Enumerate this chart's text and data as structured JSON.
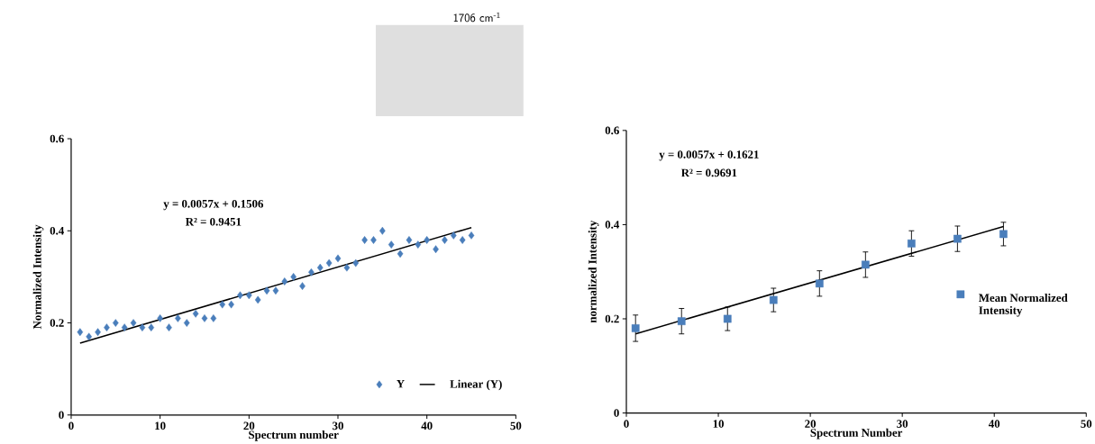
{
  "chart_data": [
    {
      "type": "scatter",
      "xlabel": "Spectrum number",
      "ylabel": "Normalized Intensity",
      "xlim": [
        0,
        50
      ],
      "ylim": [
        0,
        0.6
      ],
      "xticks": [
        0,
        10,
        20,
        30,
        40,
        50
      ],
      "yticks": [
        0,
        0.2,
        0.4,
        0.6
      ],
      "legend": "bottom right",
      "grid": false,
      "annotations": [
        "y = 0.0057x + 0.1506",
        "R² = 0.9451"
      ],
      "series": [
        {
          "name": "Y",
          "type": "scatter",
          "marker": "diamond",
          "color": "#4a7ebb",
          "x": [
            1,
            2,
            3,
            4,
            5,
            6,
            7,
            8,
            9,
            10,
            11,
            12,
            13,
            14,
            15,
            16,
            17,
            18,
            19,
            20,
            21,
            22,
            23,
            24,
            25,
            26,
            27,
            28,
            29,
            30,
            31,
            32,
            33,
            34,
            35,
            36,
            37,
            38,
            39,
            40,
            41,
            42,
            43,
            44,
            45
          ],
          "values": [
            0.18,
            0.17,
            0.18,
            0.19,
            0.2,
            0.19,
            0.2,
            0.19,
            0.19,
            0.21,
            0.19,
            0.21,
            0.2,
            0.22,
            0.21,
            0.21,
            0.24,
            0.24,
            0.26,
            0.26,
            0.25,
            0.27,
            0.27,
            0.29,
            0.3,
            0.28,
            0.31,
            0.32,
            0.33,
            0.34,
            0.32,
            0.33,
            0.38,
            0.38,
            0.4,
            0.37,
            0.35,
            0.38,
            0.37,
            0.38,
            0.36,
            0.38,
            0.39,
            0.38,
            0.39
          ]
        },
        {
          "name": "Linear (Y)",
          "type": "line",
          "marker": "none",
          "color": "#000000",
          "x": [
            1,
            45
          ],
          "values": [
            0.156,
            0.407
          ]
        }
      ]
    },
    {
      "type": "scatter",
      "xlabel": "Spectrum Number",
      "ylabel": "normalized Intensity",
      "xlim": [
        0,
        50
      ],
      "ylim": [
        0,
        0.6
      ],
      "xticks": [
        0,
        10,
        20,
        30,
        40,
        50
      ],
      "yticks": [
        0,
        0.2,
        0.4,
        0.6
      ],
      "legend": "right",
      "grid": false,
      "annotations": [
        "y = 0.0057x + 0.1621",
        "R² = 0.9691"
      ],
      "series": [
        {
          "name": "Mean Normalized Intensity",
          "type": "scatter",
          "marker": "square",
          "color": "#4a7ebb",
          "x": [
            1,
            6,
            11,
            16,
            21,
            26,
            31,
            36,
            41
          ],
          "values": [
            0.18,
            0.195,
            0.2,
            0.24,
            0.275,
            0.315,
            0.36,
            0.37,
            0.38
          ],
          "errors": [
            0.028,
            0.027,
            0.025,
            0.025,
            0.027,
            0.027,
            0.027,
            0.027,
            0.025
          ]
        },
        {
          "type": "line",
          "marker": "none",
          "color": "#000000",
          "x": [
            1,
            41
          ],
          "values": [
            0.168,
            0.396
          ]
        }
      ]
    },
    {
      "type": "other",
      "annotations": [
        "1706 cm$^{-1}$"
      ]
    }
  ]
}
